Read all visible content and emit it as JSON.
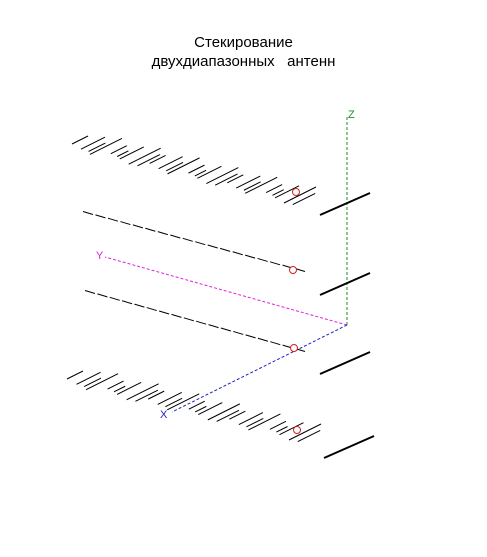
{
  "title": [
    "Стекирование",
    "двухдиапазонных   антенн"
  ],
  "axes": {
    "z": "Z",
    "y": "Y",
    "x": "X"
  }
}
